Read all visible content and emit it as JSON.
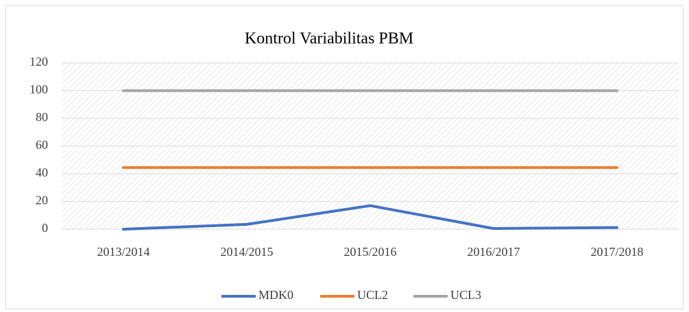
{
  "chart_data": {
    "type": "line",
    "title": "Kontrol Variabilitas PBM",
    "categories": [
      "2013/2014",
      "2014/2015",
      "2015/2016",
      "2016/2017",
      "2017/2018"
    ],
    "series": [
      {
        "name": "MDK0",
        "color": "#4472c4",
        "values": [
          0,
          3.5,
          17,
          0.5,
          1.2
        ]
      },
      {
        "name": "UCL2",
        "color": "#ed7d31",
        "values": [
          44.5,
          44.5,
          44.5,
          44.5,
          44.5
        ]
      },
      {
        "name": "UCL3",
        "color": "#a5a5a5",
        "values": [
          100,
          100,
          100,
          100,
          100
        ]
      }
    ],
    "ylim": [
      0,
      120
    ],
    "yticks": [
      0,
      20,
      40,
      60,
      80,
      100,
      120
    ],
    "grid": true,
    "legend": "bottom"
  }
}
